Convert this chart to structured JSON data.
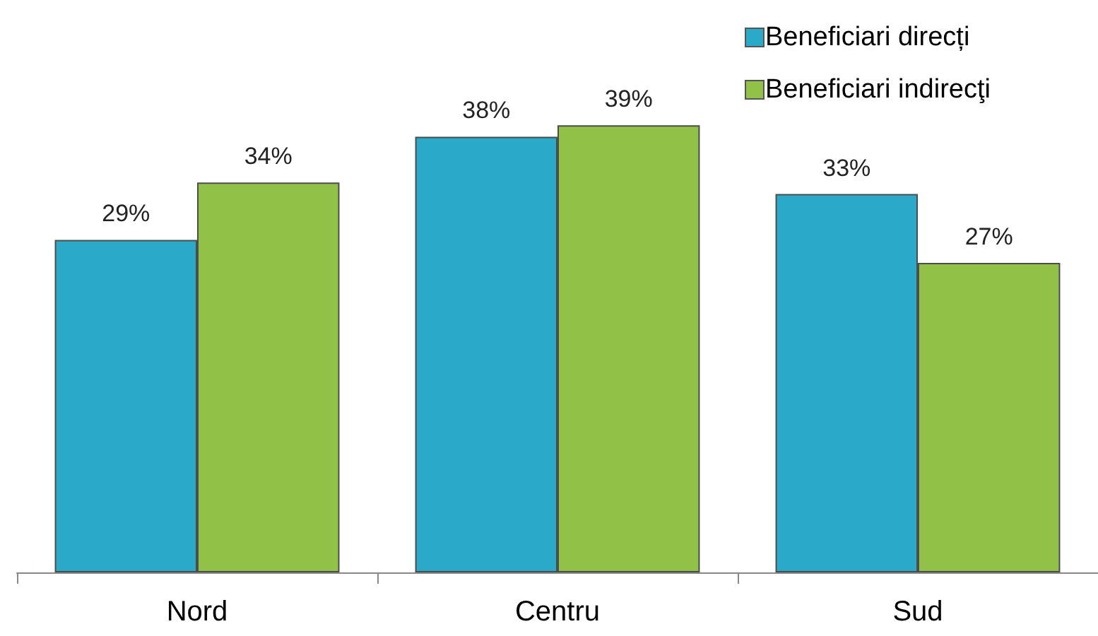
{
  "chart_data": {
    "type": "bar",
    "categories": [
      "Nord",
      "Centru",
      "Sud"
    ],
    "series": [
      {
        "name": "Beneficiari direcți",
        "color": "#2aa9c9",
        "values": [
          29,
          38,
          33
        ],
        "value_labels": [
          "29%",
          "38%",
          "33%"
        ]
      },
      {
        "name": "Beneficiari indirecţi",
        "color": "#92c147",
        "values": [
          34,
          39,
          27
        ],
        "value_labels": [
          "34%",
          "39%",
          "27%"
        ]
      }
    ],
    "legend": "top right"
  }
}
